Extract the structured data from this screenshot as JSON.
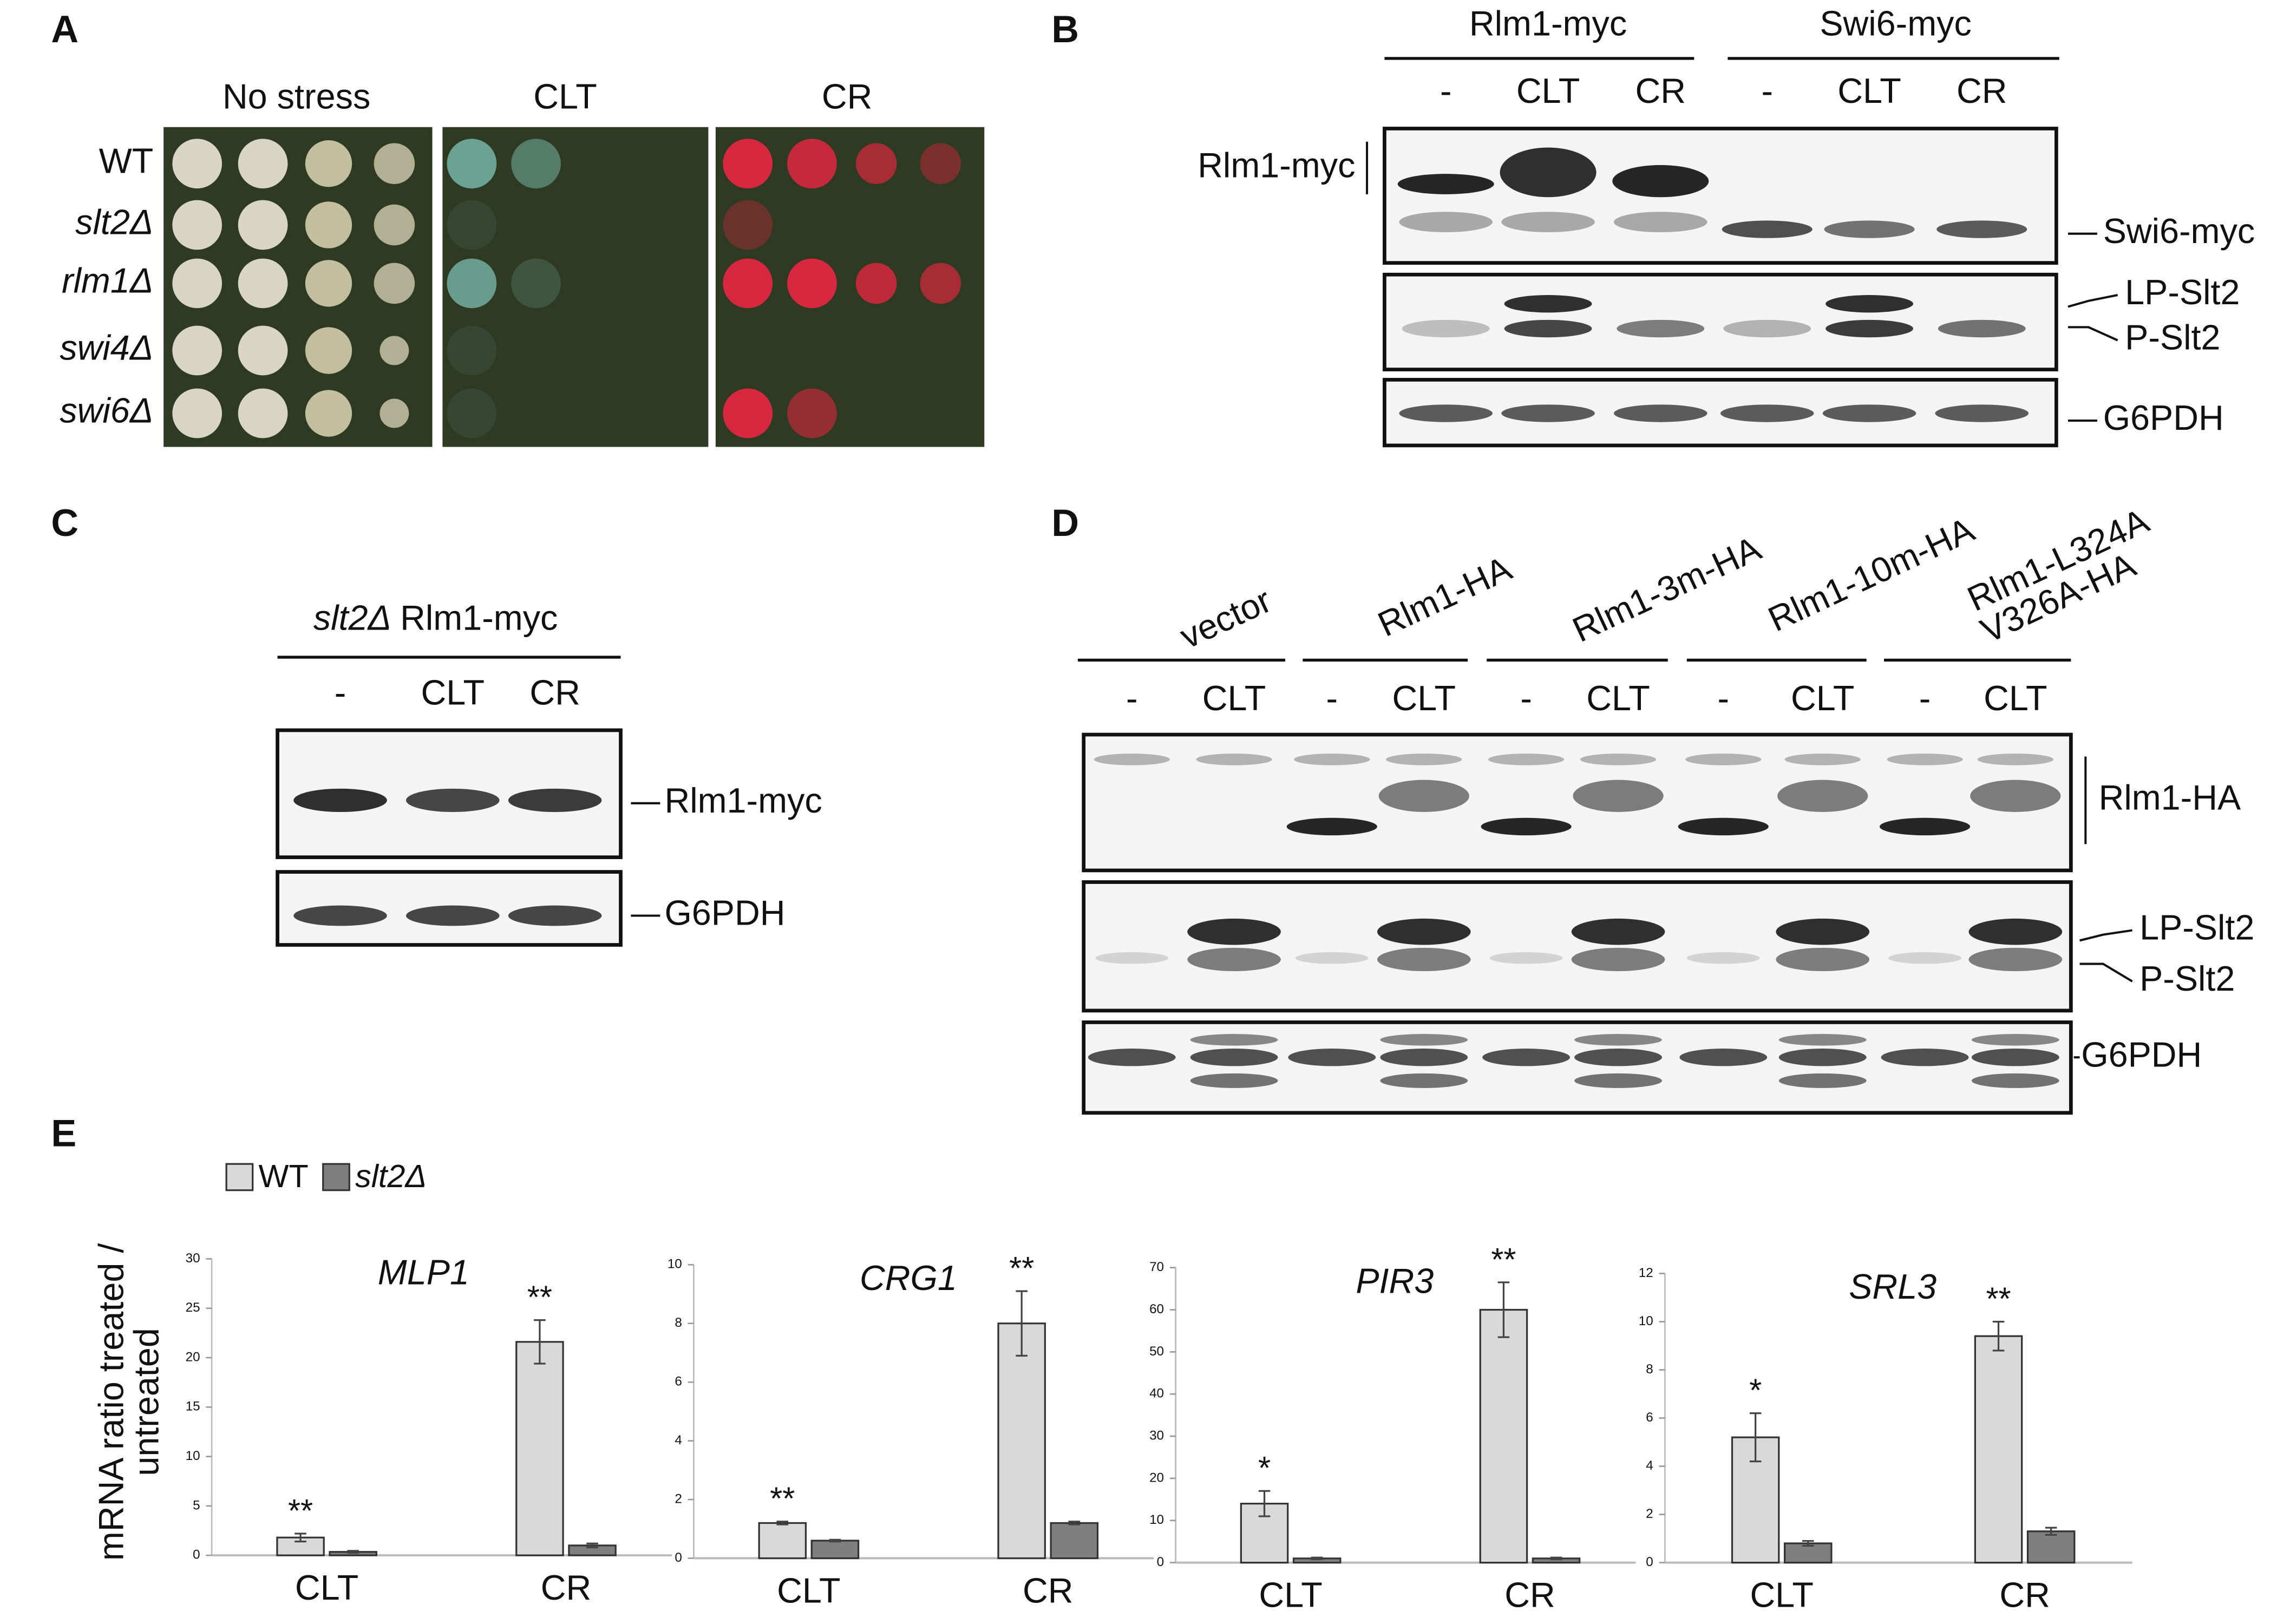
{
  "panel_labels": [
    "A",
    "B",
    "C",
    "D",
    "E"
  ],
  "panel_a": {
    "conditions": [
      "No stress",
      "CLT",
      "CR"
    ],
    "strains": [
      "WT",
      "slt2Δ",
      "rlm1Δ",
      "swi4Δ",
      "swi6Δ"
    ]
  },
  "panel_b": {
    "groups": [
      "Rlm1-myc",
      "Swi6-myc"
    ],
    "lanes": [
      "-",
      "CLT",
      "CR",
      "-",
      "CLT",
      "CR"
    ],
    "labels": [
      "Rlm1-myc",
      "Swi6-myc",
      "LP-Slt2",
      "P-Slt2",
      "G6PDH"
    ]
  },
  "panel_c": {
    "strain": "slt2Δ",
    "tag": "Rlm1-myc",
    "lanes": [
      "-",
      "CLT",
      "CR"
    ],
    "labels": [
      "Rlm1-myc",
      "G6PDH"
    ]
  },
  "panel_d": {
    "groups": [
      [
        "vector"
      ],
      [
        "Rlm1-HA"
      ],
      [
        "Rlm1-3m-HA"
      ],
      [
        "Rlm1-10m-HA"
      ],
      [
        "Rlm1-L324A",
        "V326A-HA"
      ]
    ],
    "lanes": [
      "-",
      "CLT",
      "-",
      "CLT",
      "-",
      "CLT",
      "-",
      "CLT",
      "-",
      "CLT"
    ],
    "labels": [
      "Rlm1-HA",
      "LP-Slt2",
      "P-Slt2",
      "G6PDH"
    ]
  },
  "chart_data": [
    {
      "type": "bar",
      "title": "MLP1",
      "ylabel": [
        "mRNA ratio treated /",
        "untreated"
      ],
      "categories": [
        "CLT",
        "CR"
      ],
      "series": [
        {
          "name": "WT",
          "color": "#d9d9d9",
          "values": [
            1.8,
            21.6
          ],
          "errors": [
            0.4,
            2.2
          ]
        },
        {
          "name": "slt2Δ",
          "color": "#7f7f7f",
          "values": [
            0.35,
            1.0
          ],
          "errors": [
            0.1,
            0.2
          ]
        }
      ],
      "annotations": [
        "**",
        "**"
      ],
      "ylim": [
        0,
        30
      ],
      "yticks": [
        0,
        5,
        10,
        15,
        20,
        25,
        30
      ]
    },
    {
      "type": "bar",
      "title": "CRG1",
      "categories": [
        "CLT",
        "CR"
      ],
      "series": [
        {
          "color": "#d9d9d9",
          "values": [
            1.2,
            8.0
          ],
          "errors": [
            0.05,
            1.1
          ]
        },
        {
          "color": "#7f7f7f",
          "values": [
            0.6,
            1.2
          ],
          "errors": [
            0.03,
            0.05
          ]
        }
      ],
      "annotations": [
        "**",
        "**"
      ],
      "ylim": [
        0,
        10
      ],
      "yticks": [
        0,
        2,
        4,
        6,
        8,
        10
      ]
    },
    {
      "type": "bar",
      "title": "PIR3",
      "categories": [
        "CLT",
        "CR"
      ],
      "series": [
        {
          "color": "#d9d9d9",
          "values": [
            14,
            60
          ],
          "errors": [
            3,
            6.5
          ]
        },
        {
          "color": "#7f7f7f",
          "values": [
            1,
            1
          ],
          "errors": [
            0.2,
            0.2
          ]
        }
      ],
      "annotations": [
        "*",
        "**"
      ],
      "ylim": [
        0,
        70
      ],
      "yticks": [
        0,
        10,
        20,
        30,
        40,
        50,
        60,
        70
      ]
    },
    {
      "type": "bar",
      "title": "SRL3",
      "categories": [
        "CLT",
        "CR"
      ],
      "series": [
        {
          "color": "#d9d9d9",
          "values": [
            5.2,
            9.4
          ],
          "errors": [
            1.0,
            0.6
          ]
        },
        {
          "color": "#7f7f7f",
          "values": [
            0.8,
            1.3
          ],
          "errors": [
            0.1,
            0.15
          ]
        }
      ],
      "annotations": [
        "*",
        "**"
      ],
      "ylim": [
        0,
        12
      ],
      "yticks": [
        0,
        2,
        4,
        6,
        8,
        10,
        12
      ]
    }
  ]
}
